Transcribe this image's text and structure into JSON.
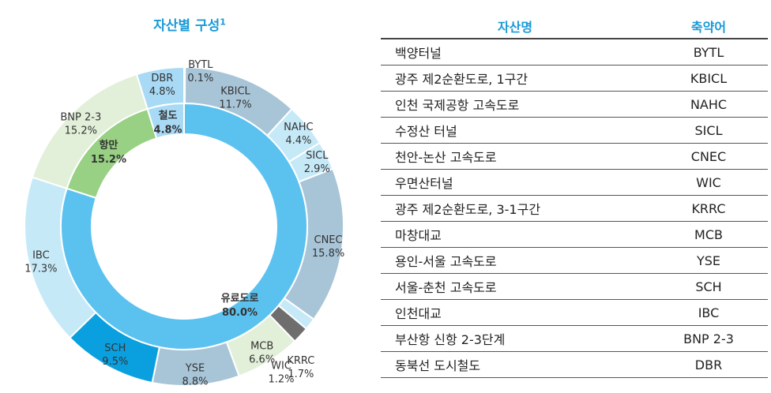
{
  "chart_data": {
    "type": "pie",
    "title": "자산별 구성",
    "title_sup": "1",
    "inner": [
      {
        "name": "유료도로",
        "pct": "80.0%",
        "value": 80.0,
        "color": "#5bc2ef"
      },
      {
        "name": "항만",
        "pct": "15.2%",
        "value": 15.2,
        "color": "#98d183"
      },
      {
        "name": "철도",
        "pct": "4.8%",
        "value": 4.8,
        "color": "#a8daf5"
      }
    ],
    "outer": [
      {
        "name": "BYTL",
        "pct": "0.1%",
        "value": 0.1,
        "color": "#a8c5d8"
      },
      {
        "name": "KBICL",
        "pct": "11.7%",
        "value": 11.7,
        "color": "#a8c5d8"
      },
      {
        "name": "NAHC",
        "pct": "4.4%",
        "value": 4.4,
        "color": "#c6e9f8"
      },
      {
        "name": "SICL",
        "pct": "2.9%",
        "value": 2.9,
        "color": "#c6e9f8"
      },
      {
        "name": "CNEC",
        "pct": "15.8%",
        "value": 15.8,
        "color": "#a8c5d8"
      },
      {
        "name": "WIC",
        "pct": "1.2%",
        "value": 1.2,
        "color": "#c6e9f8"
      },
      {
        "name": "KRRC",
        "pct": "1.7%",
        "value": 1.7,
        "color": "#6e6e6e"
      },
      {
        "name": "MCB",
        "pct": "6.6%",
        "value": 6.6,
        "color": "#e2efd9"
      },
      {
        "name": "YSE",
        "pct": "8.8%",
        "value": 8.8,
        "color": "#a8c5d8"
      },
      {
        "name": "SCH",
        "pct": "9.5%",
        "value": 9.5,
        "color": "#0aa0e0"
      },
      {
        "name": "IBC",
        "pct": "17.3%",
        "value": 17.3,
        "color": "#c6e9f8"
      },
      {
        "name": "BNP 2-3",
        "pct": "15.2%",
        "value": 15.2,
        "color": "#e2efd9"
      },
      {
        "name": "DBR",
        "pct": "4.8%",
        "value": 4.8,
        "color": "#a8daf5"
      }
    ]
  },
  "table": {
    "headers": {
      "name": "자산명",
      "abbr": "축약어"
    },
    "rows": [
      {
        "name": "백양터널",
        "abbr": "BYTL"
      },
      {
        "name": "광주 제2순환도로, 1구간",
        "abbr": "KBICL"
      },
      {
        "name": "인천 국제공항 고속도로",
        "abbr": "NAHC"
      },
      {
        "name": "수정산 터널",
        "abbr": "SICL"
      },
      {
        "name": "천안-논산 고속도로",
        "abbr": "CNEC"
      },
      {
        "name": "우면산터널",
        "abbr": "WIC"
      },
      {
        "name": "광주 제2순환도로, 3-1구간",
        "abbr": "KRRC"
      },
      {
        "name": "마창대교",
        "abbr": "MCB"
      },
      {
        "name": "용인-서울 고속도로",
        "abbr": "YSE"
      },
      {
        "name": "서울-춘천 고속도로",
        "abbr": "SCH"
      },
      {
        "name": "인천대교",
        "abbr": "IBC"
      },
      {
        "name": "부산항 신항 2-3단계",
        "abbr": "BNP 2-3"
      },
      {
        "name": "동북선 도시철도",
        "abbr": "DBR"
      }
    ]
  }
}
